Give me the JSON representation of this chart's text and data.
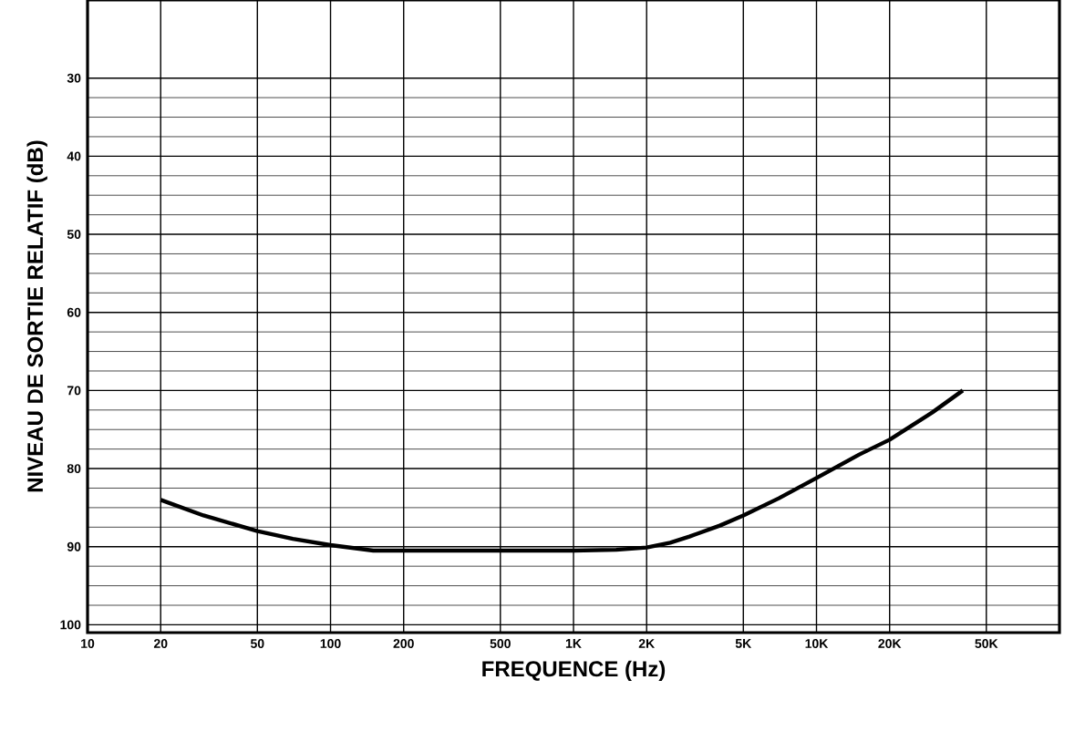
{
  "chart_data": {
    "type": "line",
    "xlabel": "FREQUENCE (Hz)",
    "ylabel": "NIVEAU DE SORTIE RELATIF (dB)",
    "log": "x",
    "grid": true,
    "marker": "none",
    "line_style": "solid",
    "xlim": [
      10,
      100000
    ],
    "ylim": [
      101,
      20
    ],
    "xticks": [
      10,
      20,
      50,
      100,
      200,
      500,
      {
        "value": 1000,
        "label": "1K"
      },
      {
        "value": 2000,
        "label": "2K"
      },
      {
        "value": 5000,
        "label": "5K"
      },
      {
        "value": 10000,
        "label": "10K"
      },
      {
        "value": 20000,
        "label": "20K"
      },
      {
        "value": 50000,
        "label": "50K"
      }
    ],
    "yticks": [
      30,
      40,
      50,
      60,
      70,
      80,
      90,
      100
    ],
    "series": [
      {
        "color": "#000000",
        "x": [
          20,
          30,
          50,
          70,
          100,
          150,
          200,
          500,
          1000,
          1500,
          2000,
          2500,
          3000,
          4000,
          5000,
          7000,
          10000,
          15000,
          20000,
          30000,
          40000
        ],
        "values": [
          84,
          86,
          88,
          89,
          89.8,
          90.5,
          90.5,
          90.5,
          90.5,
          90.4,
          90.1,
          89.5,
          88.7,
          87.3,
          86,
          83.8,
          81.2,
          78.2,
          76.3,
          72.8,
          70
        ]
      }
    ]
  }
}
